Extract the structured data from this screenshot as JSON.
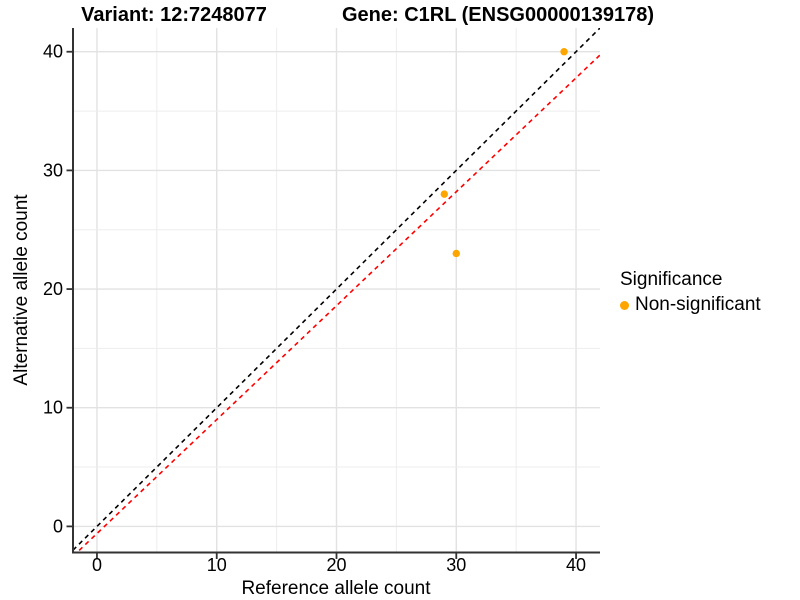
{
  "chart_data": {
    "type": "scatter",
    "title_left": "Variant: 12:7248077",
    "title_right": "Gene: C1RL (ENSG00000139178)",
    "xlabel": "Reference allele count",
    "ylabel": "Alternative allele count",
    "xlim": [
      -2,
      42
    ],
    "ylim": [
      -2.2,
      42
    ],
    "x_ticks": [
      0,
      10,
      20,
      30,
      40
    ],
    "y_ticks": [
      0,
      10,
      20,
      30,
      40
    ],
    "grid": "on",
    "grid_minor_step": 5,
    "legend_position": "right",
    "legend_title": "Significance",
    "series": [
      {
        "name": "Non-significant",
        "color": "#FFA500",
        "points": [
          {
            "x": 39,
            "y": 40
          },
          {
            "x": 29,
            "y": 28
          },
          {
            "x": 30,
            "y": 23
          }
        ]
      }
    ],
    "lines": [
      {
        "name": "identity-line",
        "slope": 1,
        "intercept": 0,
        "color": "#000000",
        "style": "dashed"
      },
      {
        "name": "fit-line",
        "slope": 0.96,
        "intercept": -0.6,
        "color": "#FF0000",
        "style": "dashed"
      }
    ],
    "colors": {
      "grid_major": "#E2E2E2",
      "grid_minor": "#EDEDED",
      "axis_line": "#333333",
      "tick_text": "#000000",
      "point": "#FFA500"
    }
  }
}
